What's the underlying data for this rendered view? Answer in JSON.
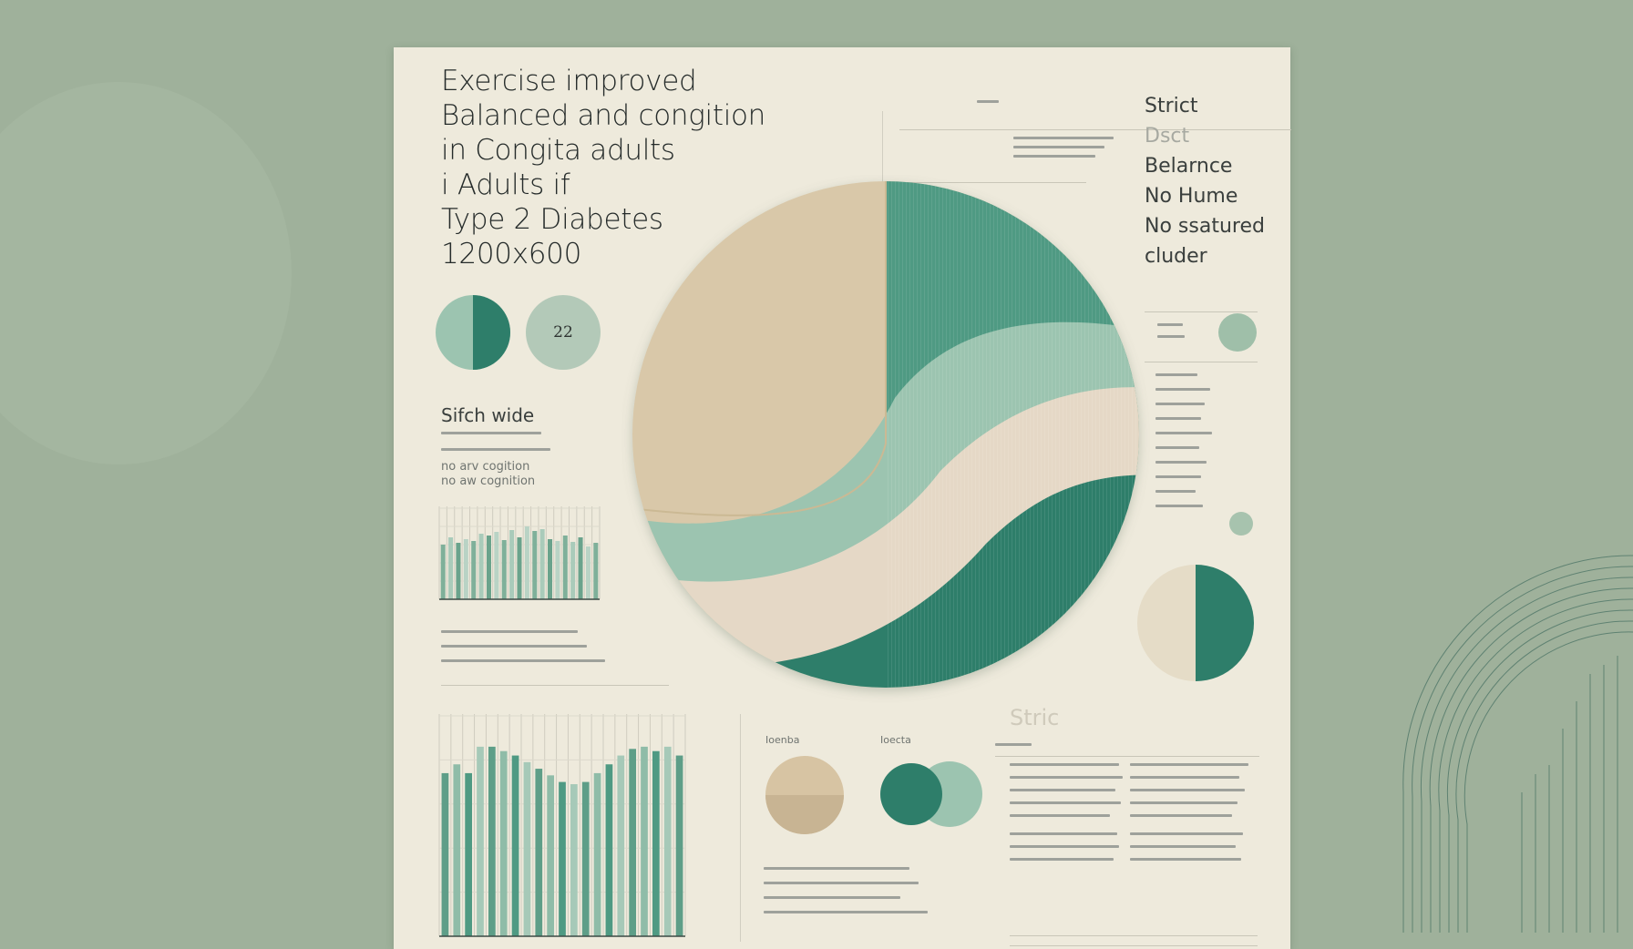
{
  "title_lines": [
    "Exercise improved",
    "Balanced and congition",
    "in Congita adults",
    "i Adults if",
    "Type 2 Diabetes",
    "1200x600"
  ],
  "sidebar_right": {
    "heading": "Strict",
    "lines": [
      "Dsct",
      "Belarnce",
      "No Hume",
      "No ssatured",
      "cluder"
    ]
  },
  "left_panel": {
    "badge_value": "22",
    "section_label": "Sifch wide",
    "body_lines": [
      "no arv cogition",
      "no aw cognition"
    ]
  },
  "small_headers": [
    "Ioenba",
    "Ioecta"
  ],
  "bottom_right_heading": "Stric",
  "colors": {
    "background": "#9fb19b",
    "paper": "#eeeadc",
    "tan": "#d9c8a9",
    "dark_teal": "#2e7e6a",
    "teal": "#4f9a83",
    "mint": "#9cc4b0",
    "sand": "#d7c4a3"
  },
  "chart_data": [
    {
      "type": "pie",
      "description_source": "main large circle chart",
      "slices": [
        {
          "name": "",
          "value": 36,
          "color": "#d9c8a9"
        },
        {
          "name": "",
          "value": 24,
          "color": "#4f9a83"
        },
        {
          "name": "",
          "value": 14,
          "color": "#9cc4b0"
        },
        {
          "name": "",
          "value": 12,
          "color": "#e5d8c6"
        },
        {
          "name": "",
          "value": 14,
          "color": "#2e7e6a"
        }
      ]
    },
    {
      "type": "bar",
      "description_source": "upper-left small bar chart",
      "values": [
        60,
        68,
        62,
        66,
        64,
        72,
        70,
        74,
        65,
        76,
        68,
        80,
        75,
        77,
        66,
        64,
        70,
        63,
        68,
        58,
        62
      ],
      "ylim": [
        0,
        100
      ]
    },
    {
      "type": "bar",
      "description_source": "bottom-left bar chart",
      "values": [
        74,
        78,
        74,
        86,
        86,
        84,
        82,
        79,
        76,
        73,
        70,
        69,
        70,
        74,
        78,
        82,
        85,
        86,
        84,
        86,
        82
      ],
      "ylim": [
        0,
        100
      ]
    },
    {
      "type": "pie",
      "description_source": "right small two-tone circle",
      "slices": [
        {
          "name": "",
          "value": 50,
          "color": "#e5dcc7"
        },
        {
          "name": "",
          "value": 50,
          "color": "#2e7e6a"
        }
      ]
    }
  ]
}
